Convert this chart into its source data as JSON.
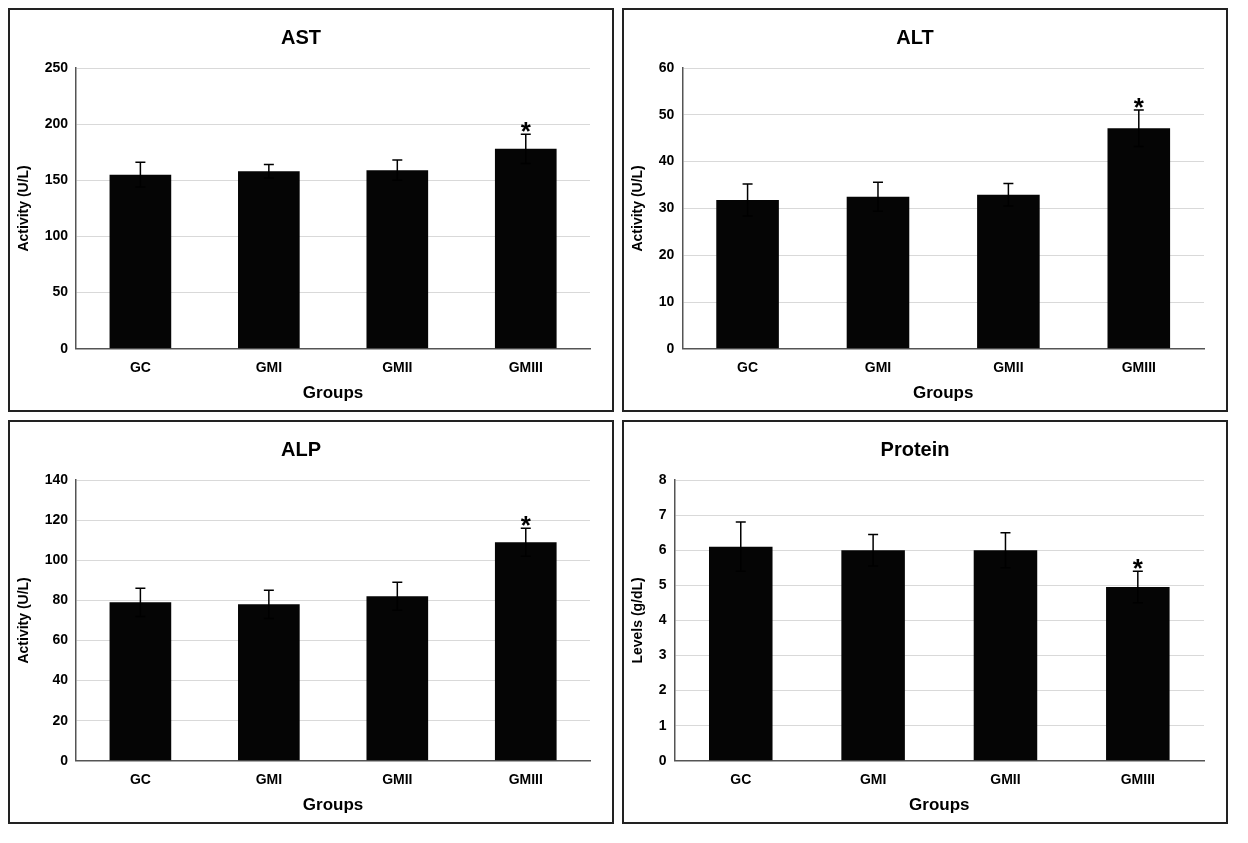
{
  "chart_data": [
    {
      "type": "bar",
      "title": "AST",
      "xlabel": "Groups",
      "ylabel": "Activity (U/L)",
      "categories": [
        "GC",
        "GMI",
        "GMII",
        "GMIII"
      ],
      "color": "#050505",
      "values": [
        155,
        158,
        159,
        178
      ],
      "errors": [
        11,
        6,
        9,
        13
      ],
      "ylim": [
        0,
        250
      ],
      "yticks": [
        0,
        50,
        100,
        150,
        200,
        250
      ],
      "grid": "y",
      "annotations": [
        {
          "text": "*",
          "x": "GMIII",
          "y": 191
        }
      ]
    },
    {
      "type": "bar",
      "title": "ALT",
      "xlabel": "Groups",
      "ylabel": "Activity (U/L)",
      "categories": [
        "GC",
        "GMI",
        "GMII",
        "GMIII"
      ],
      "color": "#050505",
      "values": [
        31.8,
        32.5,
        32.9,
        47.1
      ],
      "errors": [
        3.4,
        3.1,
        2.4,
        3.9
      ],
      "ylim": [
        0,
        60
      ],
      "yticks": [
        0,
        10,
        20,
        30,
        40,
        50,
        60
      ],
      "grid": "y",
      "annotations": [
        {
          "text": "*",
          "x": "GMIII",
          "y": 51
        }
      ]
    },
    {
      "type": "bar",
      "title": "ALP",
      "xlabel": "Groups",
      "ylabel": "Activity (U/L)",
      "categories": [
        "GC",
        "GMI",
        "GMII",
        "GMIII"
      ],
      "color": "#050505",
      "values": [
        79,
        78,
        82,
        109
      ],
      "errors": [
        7,
        7,
        7,
        7
      ],
      "ylim": [
        0,
        140
      ],
      "yticks": [
        0,
        20,
        40,
        60,
        80,
        100,
        120,
        140
      ],
      "grid": "y",
      "annotations": [
        {
          "text": "*",
          "x": "GMIII",
          "y": 116
        }
      ]
    },
    {
      "type": "bar",
      "title": "Protein",
      "xlabel": "Groups",
      "ylabel": "Levels (g/dL)",
      "categories": [
        "GC",
        "GMI",
        "GMII",
        "GMIII"
      ],
      "color": "#050505",
      "values": [
        6.1,
        6.0,
        6.0,
        4.95
      ],
      "errors": [
        0.7,
        0.45,
        0.5,
        0.45
      ],
      "ylim": [
        0,
        8
      ],
      "yticks": [
        0,
        1,
        2,
        3,
        4,
        5,
        6,
        7,
        8
      ],
      "grid": "y",
      "annotations": [
        {
          "text": "*",
          "x": "GMIII",
          "y": 5.4
        }
      ]
    }
  ]
}
